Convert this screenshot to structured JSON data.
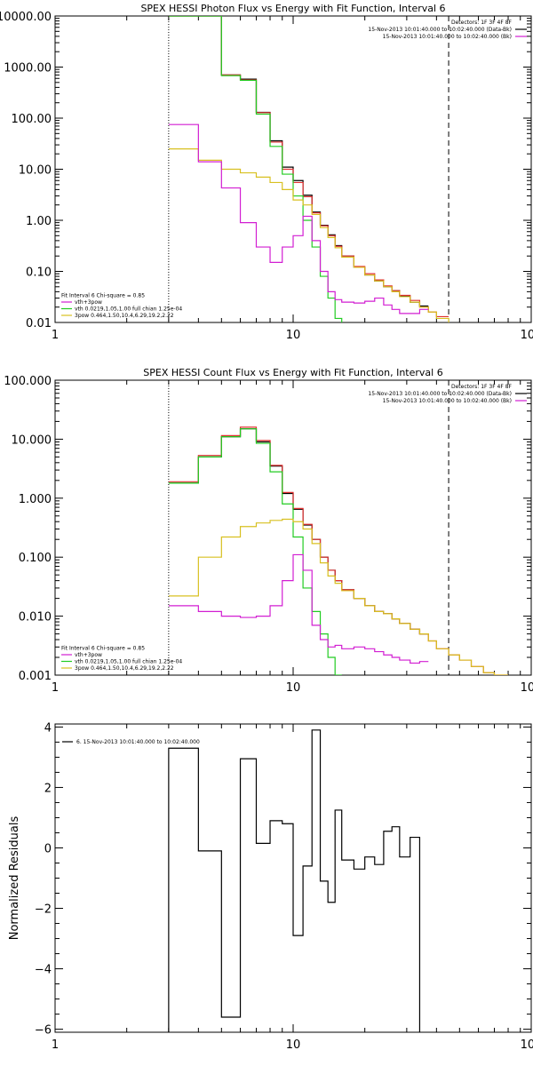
{
  "chart_data": [
    {
      "type": "line",
      "title": "SPEX HESSI Photon Flux vs Energy with Fit Function, Interval 6",
      "xscale": "log",
      "yscale": "log",
      "xlim": [
        1,
        100
      ],
      "ylim": [
        0.01,
        10000
      ],
      "xticks": [
        {
          "v": 1,
          "label": "1"
        },
        {
          "v": 10,
          "label": "10"
        },
        {
          "v": 100,
          "label": "100"
        }
      ],
      "yticks": [
        {
          "v": 0.01,
          "label": "0.01"
        },
        {
          "v": 0.1,
          "label": "0.10"
        },
        {
          "v": 1,
          "label": "1.00"
        },
        {
          "v": 10,
          "label": "10.00"
        },
        {
          "v": 100,
          "label": "100.00"
        },
        {
          "v": 1000,
          "label": "1000.00"
        },
        {
          "v": 10000,
          "label": "10000.00"
        }
      ],
      "vlines": [
        {
          "x": 3,
          "style": "dotted"
        },
        {
          "x": 45,
          "style": "dashed"
        }
      ],
      "legend_top_right": [
        {
          "text": "Detectors: 1F 3F 4F 8F",
          "color": null
        },
        {
          "text": "15-Nov-2013 10:01:40.000 to 10:02:40.000 (Data-Bk)",
          "color": "#000000"
        },
        {
          "text": "15-Nov-2013 10:01:40.000 to 10:02:40.000 (Bk)",
          "color": "#d21ed2"
        }
      ],
      "legend_bottom_left": [
        {
          "text": "Fit Interval  6     Chi-square = 0.85",
          "color": null
        },
        {
          "text": "vth+3pow",
          "color": "#d21ed2"
        },
        {
          "text": "vth 0.0219,1.05,1.00  full chian 1.25e-04",
          "color": "#22cc22"
        },
        {
          "text": "3pow 0.464,1.50,10.4,6.29,19.2,2.22",
          "color": "#d8c020"
        }
      ],
      "edges": [
        3,
        4,
        5,
        6,
        7,
        8,
        9,
        10,
        11,
        12,
        13,
        14,
        15,
        16,
        18,
        20,
        22,
        24,
        26,
        28,
        31,
        34,
        37,
        40,
        45,
        50,
        56
      ],
      "series": [
        {
          "name": "Data-Bk",
          "color": "#000000",
          "values": [
            10000,
            10000,
            700,
            580,
            130,
            36,
            11,
            6,
            3.1,
            1.45,
            0.8,
            0.52,
            0.32,
            0.2,
            0.12,
            0.085,
            0.065,
            0.05,
            0.042,
            0.033,
            0.025,
            0.021
          ]
        },
        {
          "name": "vth+3pow",
          "color": "#e03030",
          "values": [
            10000,
            10000,
            700,
            560,
            128,
            34,
            10,
            5.5,
            2.9,
            1.4,
            0.78,
            0.5,
            0.31,
            0.2,
            0.125,
            0.09,
            0.068,
            0.052,
            0.042,
            0.034,
            0.027,
            0.02,
            0.016,
            0.013
          ]
        },
        {
          "name": "vth",
          "color": "#22cc22",
          "values": [
            10000,
            10000,
            680,
            550,
            120,
            28,
            8,
            3,
            1.0,
            0.3,
            0.08,
            0.03,
            0.012,
            0.008
          ]
        },
        {
          "name": "3pow",
          "color": "#d8c020",
          "values": [
            25,
            15,
            10,
            8.5,
            7,
            5.5,
            4,
            2.5,
            2.0,
            1.3,
            0.72,
            0.46,
            0.29,
            0.19,
            0.12,
            0.085,
            0.065,
            0.05,
            0.04,
            0.032,
            0.025,
            0.02,
            0.016,
            0.012,
            0.009,
            0.007
          ]
        },
        {
          "name": "Bk",
          "color": "#d21ed2",
          "values": [
            75,
            14,
            4.3,
            0.9,
            0.3,
            0.15,
            0.3,
            0.5,
            1.2,
            0.4,
            0.1,
            0.04,
            0.028,
            0.025,
            0.024,
            0.026,
            0.03,
            0.022,
            0.018,
            0.015,
            0.015,
            0.018
          ]
        }
      ]
    },
    {
      "type": "line",
      "title": "SPEX HESSI Count Flux vs Energy with Fit Function, Interval 6",
      "xscale": "log",
      "yscale": "log",
      "xlim": [
        1,
        100
      ],
      "ylim": [
        0.001,
        100
      ],
      "xticks": [
        {
          "v": 1,
          "label": "1"
        },
        {
          "v": 10,
          "label": "10"
        },
        {
          "v": 100,
          "label": "100"
        }
      ],
      "yticks": [
        {
          "v": 0.001,
          "label": "0.001"
        },
        {
          "v": 0.01,
          "label": "0.010"
        },
        {
          "v": 0.1,
          "label": "0.100"
        },
        {
          "v": 1,
          "label": "1.000"
        },
        {
          "v": 10,
          "label": "10.000"
        },
        {
          "v": 100,
          "label": "100.000"
        }
      ],
      "vlines": [
        {
          "x": 3,
          "style": "dotted"
        },
        {
          "x": 45,
          "style": "dashed"
        }
      ],
      "legend_top_right": [
        {
          "text": "Detectors: 1F 3F 4F 8F",
          "color": null
        },
        {
          "text": "15-Nov-2013 10:01:40.000 to 10:02:40.000 (Data-Bk)",
          "color": "#000000"
        },
        {
          "text": "15-Nov-2013 10:01:40.000 to 10:02:40.000 (Bk)",
          "color": "#d21ed2"
        }
      ],
      "legend_bottom_left": [
        {
          "text": "Fit Interval  6     Chi-square = 0.85",
          "color": null
        },
        {
          "text": "vth+3pow",
          "color": "#d21ed2"
        },
        {
          "text": "vth 0.0219,1.05,1.00  full chian 1.25e-04",
          "color": "#22cc22"
        },
        {
          "text": "3pow 0.464,1.50,10.4,6.29,19.2,2.22",
          "color": "#d8c020"
        }
      ],
      "edges": [
        3,
        4,
        5,
        6,
        7,
        8,
        9,
        10,
        11,
        12,
        13,
        14,
        15,
        16,
        18,
        20,
        22,
        24,
        26,
        28,
        31,
        34,
        37,
        40,
        45,
        50,
        56,
        63,
        70,
        80
      ],
      "series": [
        {
          "name": "Data-Bk",
          "color": "#000000",
          "values": [
            1.8,
            5,
            11,
            15,
            9,
            3.5,
            1.2,
            0.65,
            0.35,
            0.2,
            0.1,
            0.06,
            0.04,
            0.028,
            0.02,
            0.015,
            0.012,
            0.011,
            0.009,
            0.0075,
            0.006,
            0.005
          ]
        },
        {
          "name": "vth+3pow",
          "color": "#e03030",
          "values": [
            1.9,
            5.3,
            11.5,
            16,
            9.5,
            3.6,
            1.25,
            0.67,
            0.36,
            0.2,
            0.1,
            0.06,
            0.04,
            0.028,
            0.02,
            0.015,
            0.012,
            0.011,
            0.009,
            0.0075,
            0.006,
            0.005,
            0.0038,
            0.0028,
            0.0022,
            0.0018,
            0.0014,
            0.0011,
            0.001
          ]
        },
        {
          "name": "vth",
          "color": "#22cc22",
          "values": [
            1.8,
            5,
            11,
            15,
            8.5,
            2.8,
            0.8,
            0.22,
            0.03,
            0.012,
            0.005,
            0.002,
            0.001
          ]
        },
        {
          "name": "3pow",
          "color": "#d8c020",
          "values": [
            0.022,
            0.1,
            0.22,
            0.33,
            0.38,
            0.42,
            0.44,
            0.4,
            0.3,
            0.17,
            0.08,
            0.048,
            0.036,
            0.027,
            0.02,
            0.015,
            0.012,
            0.011,
            0.009,
            0.0075,
            0.006,
            0.005,
            0.0038,
            0.0028,
            0.0022,
            0.0018,
            0.0014,
            0.0011,
            0.001
          ]
        },
        {
          "name": "Bk",
          "color": "#d21ed2",
          "values": [
            0.015,
            0.012,
            0.01,
            0.0095,
            0.01,
            0.015,
            0.04,
            0.11,
            0.06,
            0.007,
            0.004,
            0.003,
            0.0032,
            0.0028,
            0.003,
            0.0028,
            0.0025,
            0.0022,
            0.002,
            0.0018,
            0.0016,
            0.0017
          ]
        }
      ]
    },
    {
      "type": "line",
      "title": "",
      "ylabel": "Normalized Residuals",
      "xscale": "log",
      "yscale": "linear",
      "xlim": [
        1,
        100
      ],
      "ylim": [
        -6.1,
        4.1
      ],
      "xticks": [
        {
          "v": 1,
          "label": "1"
        },
        {
          "v": 10,
          "label": "10"
        },
        {
          "v": 100,
          "label": "100"
        }
      ],
      "yticks": [
        {
          "v": -6,
          "label": "−6"
        },
        {
          "v": -4,
          "label": "−4"
        },
        {
          "v": -2,
          "label": "−2"
        },
        {
          "v": 0,
          "label": "0"
        },
        {
          "v": 2,
          "label": "2"
        },
        {
          "v": 4,
          "label": "4"
        }
      ],
      "vlines": [],
      "legend_top_left": [
        {
          "text": "6. 15-Nov-2013 10:01:40.000 to 10:02:40.000",
          "color": "#000000"
        }
      ],
      "edges": [
        3,
        4,
        5,
        6,
        7,
        8,
        9,
        10,
        11,
        12,
        13,
        14,
        15,
        16,
        18,
        20,
        22,
        24,
        26,
        28,
        31,
        34,
        37,
        40,
        45
      ],
      "series": [
        {
          "name": "6. 15-Nov-2013 10:01:40.000 to 10:02:40.000",
          "color": "#000000",
          "values": [
            3.3,
            -0.1,
            -5.6,
            2.95,
            0.15,
            0.9,
            0.8,
            -2.9,
            -0.6,
            3.9,
            -1.1,
            -1.8,
            1.25,
            -0.4,
            -0.7,
            -0.3,
            -0.55,
            0.55,
            0.7,
            -0.3,
            0.35
          ],
          "closed": true
        }
      ]
    }
  ]
}
